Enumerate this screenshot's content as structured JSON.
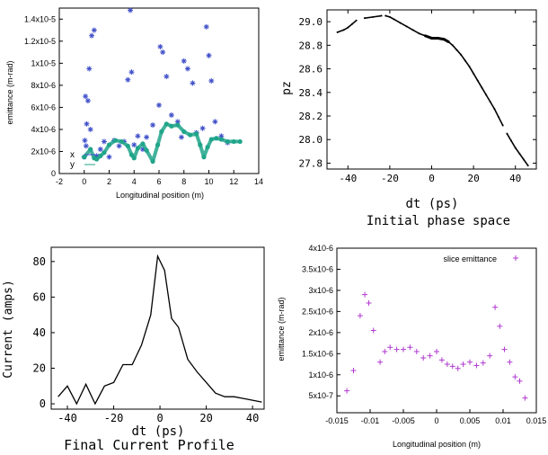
{
  "chart_data": [
    {
      "type": "scatter",
      "xlabel": "Longitudinal position (m)",
      "ylabel": "emittance (m-rad)",
      "xlim": [
        -2,
        14
      ],
      "ylim": [
        0,
        1.5e-05
      ],
      "x_ticks": [
        "-2",
        "0",
        "2",
        "4",
        "6",
        "8",
        "10",
        "12",
        "14"
      ],
      "y_ticks": [
        "0",
        "2x10-6",
        "4x10-6",
        "6x10-6",
        "8x10-6",
        "1x10-5",
        "1.2x10-5",
        "1.4x10-5"
      ],
      "legend_position": "bottom-left",
      "series": [
        {
          "name": "x",
          "color": "#3f4fc9",
          "marker": "star",
          "x": [
            0.0,
            0.05,
            0.1,
            0.15,
            0.2,
            0.3,
            0.4,
            0.5,
            0.6,
            0.8,
            1.0,
            1.3,
            1.6,
            2.0,
            2.4,
            2.8,
            3.2,
            3.5,
            3.7,
            3.8,
            4.0,
            4.3,
            4.7,
            5.0,
            5.5,
            6.0,
            6.1,
            6.3,
            6.6,
            7.0,
            7.5,
            7.8,
            8.0,
            8.3,
            8.7,
            9.0,
            9.5,
            9.8,
            10.0,
            10.2,
            10.5,
            11.0,
            11.5
          ],
          "y": [
            1.5e-06,
            3e-06,
            7e-06,
            2.5e-06,
            4.5e-06,
            6.6e-06,
            9.5e-06,
            4e-06,
            1.25e-05,
            1.3e-05,
            1.6e-06,
            2.2e-06,
            2.9e-06,
            1.5e-06,
            3e-06,
            2.5e-06,
            2.9e-06,
            8.5e-06,
            1.48e-05,
            9.2e-06,
            2.6e-06,
            3.4e-06,
            2.2e-06,
            3.3e-06,
            4.4e-06,
            6.2e-06,
            1.15e-05,
            1.1e-05,
            8.8e-06,
            5.3e-06,
            4.7e-06,
            3.3e-06,
            1.02e-05,
            9.5e-06,
            8.2e-06,
            3.7e-06,
            4.1e-06,
            1.33e-05,
            1.07e-05,
            8.4e-06,
            4.7e-06,
            3.4e-06,
            2.8e-06
          ]
        },
        {
          "name": "y",
          "color": "#20a58a",
          "marker": "dot",
          "x": [
            0.0,
            0.5,
            0.8,
            1.0,
            1.3,
            1.6,
            2.0,
            2.5,
            3.0,
            3.5,
            3.8,
            4.0,
            4.3,
            4.7,
            5.0,
            5.5,
            5.9,
            6.2,
            6.6,
            7.0,
            7.5,
            8.0,
            8.5,
            9.0,
            9.3,
            9.6,
            9.9,
            10.2,
            10.6,
            11.0,
            11.5,
            12.0,
            12.5
          ],
          "y": [
            1.5e-06,
            2.2e-06,
            1.4e-06,
            1.3e-06,
            1.6e-06,
            1.9e-06,
            2.6e-06,
            3e-06,
            2.9e-06,
            2.5e-06,
            1.7e-06,
            1.4e-06,
            2.3e-06,
            2.7e-06,
            2.1e-06,
            1.1e-06,
            2.6e-06,
            3.8e-06,
            4.5e-06,
            4.3e-06,
            4.4e-06,
            3.8e-06,
            3.5e-06,
            3.6e-06,
            2.6e-06,
            1.5e-06,
            2.4e-06,
            3.1e-06,
            3.2e-06,
            3.1e-06,
            2.9e-06,
            2.9e-06,
            2.9e-06
          ]
        }
      ]
    },
    {
      "type": "scatter",
      "title": "Initial phase space",
      "xlabel": "dt (ps)",
      "ylabel": "pz",
      "xlim": [
        -50,
        50
      ],
      "ylim": [
        27.75,
        29.1
      ],
      "x_ticks": [
        "-40",
        "-20",
        "0",
        "20",
        "40"
      ],
      "y_ticks": [
        "27.8",
        "28.0",
        "28.2",
        "28.4",
        "28.6",
        "28.8",
        "29.0"
      ],
      "color": "#000000",
      "x": [
        -45.0,
        -42.0,
        -40.0,
        -38.0,
        -36.0,
        -32.0,
        -28.0,
        -24.0,
        -22.0,
        -20.0,
        -18.0,
        -15.0,
        -12.0,
        -9.0,
        -6.0,
        -3.0,
        0.0,
        3.0,
        6.0,
        8.0,
        10.0,
        12.0,
        14.0,
        16.0,
        18.0,
        20.0,
        22.0,
        24.0,
        26.0,
        28.0,
        30.0,
        32.0,
        34.0,
        36.0,
        38.0,
        40.0,
        42.0,
        44.0,
        46.0
      ],
      "y": [
        28.91,
        28.93,
        28.95,
        28.98,
        29.01,
        29.03,
        29.04,
        29.05,
        29.05,
        29.04,
        29.02,
        28.99,
        28.96,
        28.93,
        28.9,
        28.88,
        28.86,
        28.86,
        28.85,
        28.83,
        28.8,
        28.76,
        28.72,
        28.67,
        28.62,
        28.56,
        28.5,
        28.44,
        28.38,
        28.32,
        28.26,
        28.19,
        28.12,
        28.05,
        27.99,
        27.93,
        27.88,
        27.83,
        27.78
      ]
    },
    {
      "type": "line",
      "title": "Final Current Profile",
      "xlabel": "dt (ps)",
      "ylabel": "Current (amps)",
      "xlim": [
        -47,
        45
      ],
      "ylim": [
        -3,
        88
      ],
      "x_ticks": [
        "-40",
        "-20",
        "0",
        "20",
        "40"
      ],
      "y_ticks": [
        "0",
        "20",
        "40",
        "60",
        "80"
      ],
      "color": "#000000",
      "x": [
        -44,
        -40,
        -36,
        -32,
        -28,
        -24,
        -20,
        -16,
        -12,
        -8,
        -4,
        -1,
        2,
        5,
        8,
        12,
        16,
        20,
        24,
        28,
        32,
        36,
        40,
        44
      ],
      "y": [
        4,
        10,
        0,
        11,
        0,
        10,
        12,
        22,
        22,
        33,
        50,
        83,
        75,
        48,
        43,
        25,
        18,
        12,
        6,
        4,
        4,
        3,
        2,
        1
      ]
    },
    {
      "type": "scatter",
      "xlabel": "Longitudinal position (m)",
      "ylabel": "emittance (m-rad)",
      "xlim": [
        -0.015,
        0.015
      ],
      "ylim": [
        1e-07,
        4e-06
      ],
      "x_ticks": [
        "-0.015",
        "-0.01",
        "-0.005",
        "0",
        "0.005",
        "0.01",
        "0.015"
      ],
      "y_ticks": [
        "1x10-6",
        "1.5x10-6",
        "2x10-6",
        "2.5x10-6",
        "3x10-6",
        "3.5x10-6",
        "4x10-6",
        "5x10-7"
      ],
      "legend_position": "top-right",
      "series": [
        {
          "name": "slice emittance",
          "color": "#b03ad0",
          "marker": "plus",
          "x": [
            -0.0135,
            -0.0125,
            -0.0115,
            -0.0108,
            -0.0102,
            -0.0095,
            -0.0085,
            -0.0078,
            -0.007,
            -0.006,
            -0.005,
            -0.004,
            -0.003,
            -0.002,
            -0.001,
            0.0,
            0.0008,
            0.0016,
            0.0024,
            0.0032,
            0.004,
            0.005,
            0.006,
            0.007,
            0.008,
            0.0088,
            0.0095,
            0.0102,
            0.011,
            0.0118,
            0.0125,
            0.0133
          ],
          "y": [
            6.2e-07,
            1.1e-06,
            2.4e-06,
            2.9e-06,
            2.7e-06,
            2.05e-06,
            1.3e-06,
            1.55e-06,
            1.65e-06,
            1.6e-06,
            1.6e-06,
            1.65e-06,
            1.55e-06,
            1.4e-06,
            1.45e-06,
            1.55e-06,
            1.35e-06,
            1.25e-06,
            1.2e-06,
            1.15e-06,
            1.25e-06,
            1.3e-06,
            1.22e-06,
            1.28e-06,
            1.45e-06,
            2.6e-06,
            2.15e-06,
            1.6e-06,
            1.3e-06,
            9.5e-07,
            8.5e-07,
            4.5e-07
          ]
        }
      ]
    }
  ]
}
